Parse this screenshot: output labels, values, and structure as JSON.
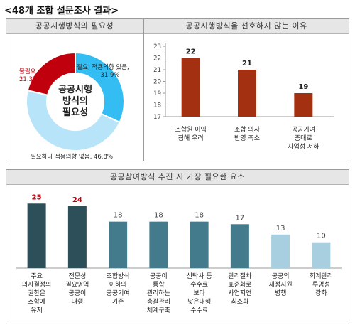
{
  "page_title": "<48개 조합 설문조사 결과>",
  "chart_data": [
    {
      "type": "pie",
      "title": "공공시행방식의 필요성",
      "center_label": [
        "공공시행",
        "방식의",
        "필요성"
      ],
      "slices": [
        {
          "label": "필요, 적용의향 있음",
          "value": 31.9,
          "value_text": "31.9%",
          "color": "#33bdf2"
        },
        {
          "label": "필요하나 적용의향 없음",
          "value": 46.8,
          "value_text": "46.8%",
          "color": "#b8e4f9"
        },
        {
          "label": "불필요",
          "value": 21.3,
          "value_text": "21.3%",
          "color": "#c0000d"
        }
      ]
    },
    {
      "type": "bar",
      "title": "공공시행방식을 선호하지 않는 이유",
      "categories": [
        [
          "조합원 이익",
          "침해 우려"
        ],
        [
          "조합 의사",
          "반영 축소"
        ],
        [
          "공공기여",
          "증대로",
          "사업성 저하"
        ]
      ],
      "values": [
        22,
        21,
        19
      ],
      "color": "#a33010",
      "ylim": [
        17,
        23
      ],
      "yticks": [
        17,
        18,
        19,
        20,
        21,
        22,
        23
      ]
    },
    {
      "type": "bar",
      "title": "공공참여방식 추진 시 가장 필요한 요소",
      "categories": [
        [
          "주요",
          "의사결정의",
          "권한은",
          "조합에",
          "유지"
        ],
        [
          "전문성",
          "필요영역",
          "공공이",
          "대행"
        ],
        [
          "조합방식",
          "이하의",
          "공공기여",
          "기준"
        ],
        [
          "공공이",
          "통합",
          "관리하는",
          "총괄관리",
          "체계구축"
        ],
        [
          "신탁사 등",
          "수수료",
          "보다",
          "낮은대행",
          "수수료"
        ],
        [
          "관리절차",
          "표준화로",
          "사업지연",
          "최소화"
        ],
        [
          "공공의",
          "재정지원",
          "병행"
        ],
        [
          "회계관리",
          "투명성",
          "강화"
        ]
      ],
      "values": [
        25,
        24,
        18,
        18,
        18,
        17,
        13,
        10
      ],
      "colors": [
        "#2d4f5a",
        "#2d4f5a",
        "#437a8c",
        "#437a8c",
        "#437a8c",
        "#437a8c",
        "#a7cfe0",
        "#a7cfe0"
      ],
      "value_label_colors": [
        "#c0000d",
        "#c0000d",
        "#444444",
        "#444444",
        "#444444",
        "#444444",
        "#444444",
        "#444444"
      ],
      "ylim": [
        0,
        27
      ]
    }
  ]
}
